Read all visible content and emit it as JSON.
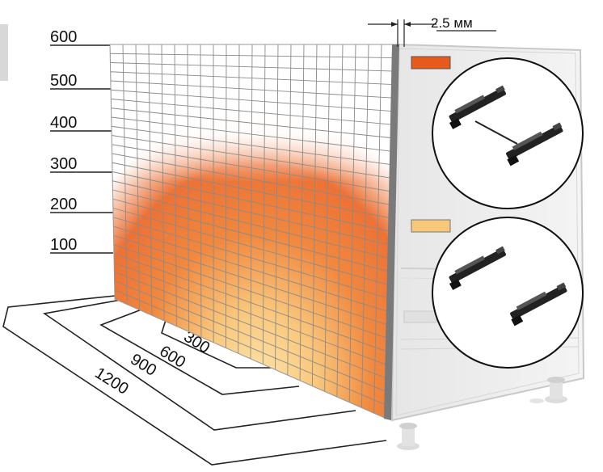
{
  "height_scale": {
    "labels": [
      "600",
      "500",
      "400",
      "300",
      "200",
      "100"
    ]
  },
  "depth_scale": {
    "labels": [
      "300",
      "600",
      "900",
      "1200"
    ]
  },
  "gap_dimension": {
    "label": "2.5 мм"
  },
  "legend": {
    "items": [
      {
        "color": "#e85a1c",
        "icon": "paired-drawer-runners-linked-icon"
      },
      {
        "color": "#f7c77a",
        "icon": "paired-drawer-runners-icon"
      }
    ]
  },
  "colors": {
    "heat_high": "#ec6a2a",
    "heat_low": "#fbe3a6",
    "panel_edge": "#7a7a7a",
    "grid_line": "#8a8a8a"
  }
}
